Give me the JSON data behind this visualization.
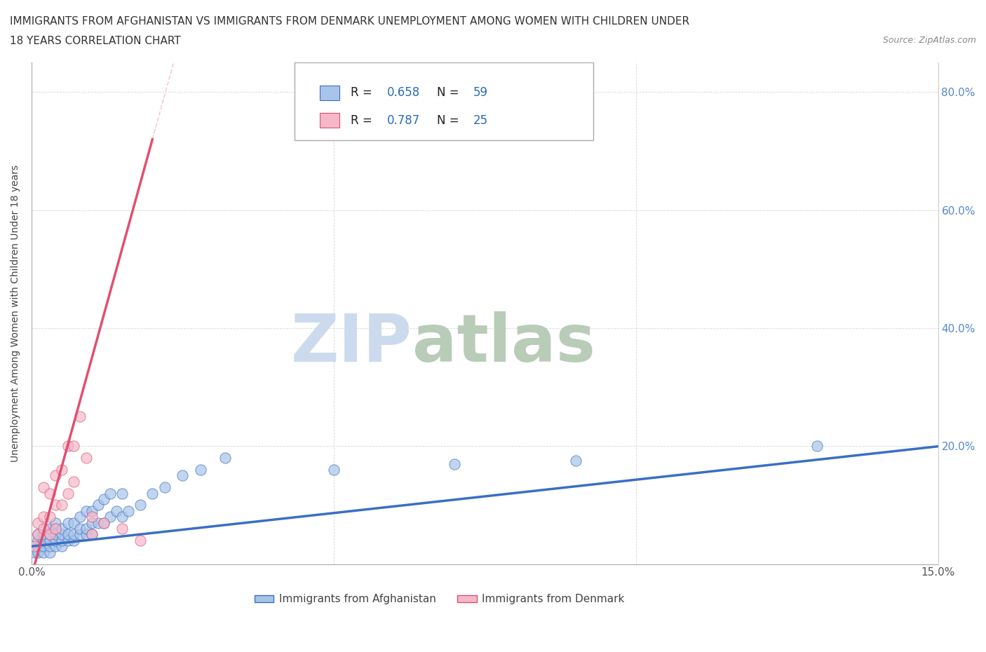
{
  "title_line1": "IMMIGRANTS FROM AFGHANISTAN VS IMMIGRANTS FROM DENMARK UNEMPLOYMENT AMONG WOMEN WITH CHILDREN UNDER",
  "title_line2": "18 YEARS CORRELATION CHART",
  "source": "Source: ZipAtlas.com",
  "ylabel": "Unemployment Among Women with Children Under 18 years",
  "xlim": [
    0.0,
    0.15
  ],
  "ylim": [
    0.0,
    0.85
  ],
  "afghanistan_R": 0.658,
  "afghanistan_N": 59,
  "denmark_R": 0.787,
  "denmark_N": 25,
  "afghanistan_color": "#a8c4e8",
  "denmark_color": "#f5b8ca",
  "afghanistan_line_color": "#3a6fc4",
  "denmark_line_color": "#e05070",
  "watermark_zip": "ZIP",
  "watermark_atlas": "atlas",
  "watermark_color_zip": "#c8d8ee",
  "watermark_color_atlas": "#c8d8c8",
  "legend_label_afghanistan": "Immigrants from Afghanistan",
  "legend_label_denmark": "Immigrants from Denmark",
  "afghanistan_x": [
    0.0005,
    0.001,
    0.001,
    0.001,
    0.001,
    0.0015,
    0.002,
    0.002,
    0.002,
    0.002,
    0.003,
    0.003,
    0.003,
    0.003,
    0.003,
    0.004,
    0.004,
    0.004,
    0.004,
    0.004,
    0.005,
    0.005,
    0.005,
    0.005,
    0.006,
    0.006,
    0.006,
    0.007,
    0.007,
    0.007,
    0.008,
    0.008,
    0.008,
    0.009,
    0.009,
    0.009,
    0.01,
    0.01,
    0.01,
    0.011,
    0.011,
    0.012,
    0.012,
    0.013,
    0.013,
    0.014,
    0.015,
    0.015,
    0.016,
    0.018,
    0.02,
    0.022,
    0.025,
    0.028,
    0.032,
    0.05,
    0.07,
    0.09,
    0.13
  ],
  "afghanistan_y": [
    0.02,
    0.02,
    0.03,
    0.04,
    0.05,
    0.03,
    0.02,
    0.03,
    0.04,
    0.05,
    0.02,
    0.03,
    0.04,
    0.05,
    0.06,
    0.03,
    0.04,
    0.05,
    0.06,
    0.07,
    0.03,
    0.04,
    0.05,
    0.06,
    0.04,
    0.05,
    0.07,
    0.04,
    0.05,
    0.07,
    0.05,
    0.06,
    0.08,
    0.05,
    0.06,
    0.09,
    0.05,
    0.07,
    0.09,
    0.07,
    0.1,
    0.07,
    0.11,
    0.08,
    0.12,
    0.09,
    0.08,
    0.12,
    0.09,
    0.1,
    0.12,
    0.13,
    0.15,
    0.16,
    0.18,
    0.16,
    0.17,
    0.175,
    0.2
  ],
  "denmark_x": [
    0.0005,
    0.001,
    0.001,
    0.002,
    0.002,
    0.002,
    0.003,
    0.003,
    0.003,
    0.004,
    0.004,
    0.004,
    0.005,
    0.005,
    0.006,
    0.006,
    0.007,
    0.007,
    0.008,
    0.009,
    0.01,
    0.01,
    0.012,
    0.015,
    0.018
  ],
  "denmark_y": [
    0.03,
    0.05,
    0.07,
    0.06,
    0.08,
    0.13,
    0.05,
    0.08,
    0.12,
    0.06,
    0.1,
    0.15,
    0.1,
    0.16,
    0.12,
    0.2,
    0.14,
    0.2,
    0.25,
    0.18,
    0.05,
    0.08,
    0.07,
    0.06,
    0.04
  ]
}
